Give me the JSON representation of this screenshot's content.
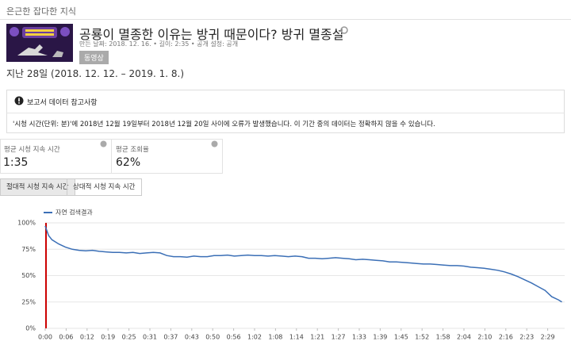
{
  "breadcrumb": "은근한 잡다한 지식",
  "video": {
    "title": "공룡이 멸종한 이유는 방귀 때문이다? 방귀 멸종설",
    "meta": "만든 날짜: 2018. 12. 16. • 길이: 2:35 • 공개 설정: 공개",
    "badge": "동영상"
  },
  "period": "지난 28일 (2018. 12. 12. – 2019. 1. 8.)",
  "notice": {
    "title": "보고서 데이터 참고사항",
    "text": "'시청 시간(단위: 분)'에 2018년 12월 19일부터 2018년 12월 20일 사이에 오류가 발생했습니다. 이 기간 중의 데이터는 정확하지 않을 수 있습니다."
  },
  "metrics": [
    {
      "label": "평균 시청 지속 시간",
      "value": "1:35"
    },
    {
      "label": "평균 조회율",
      "value": "62%"
    }
  ],
  "tabs": [
    "절대적 시청 지속 시간",
    "상대적 시청 지속 시간"
  ],
  "chart_data": {
    "type": "line",
    "x": [
      0,
      1,
      2,
      4,
      6,
      8,
      10,
      12,
      14,
      16,
      18,
      20,
      22,
      24,
      26,
      28,
      30,
      32,
      34,
      36,
      38,
      40,
      42,
      44,
      46,
      48,
      50,
      52,
      54,
      56,
      58,
      60,
      62,
      64,
      66,
      68,
      70,
      72,
      74,
      76,
      78,
      80,
      82,
      84,
      86,
      88,
      90,
      92,
      94,
      96,
      98,
      100,
      102,
      104,
      106,
      108,
      110,
      112,
      114,
      116,
      118,
      120,
      122,
      124,
      126,
      128,
      130,
      132,
      134,
      136,
      138,
      140,
      142,
      144,
      146,
      148,
      150,
      152,
      153
    ],
    "series": [
      {
        "name": "자연 검색결과",
        "color": "#3b6fb6",
        "values": [
          97,
          88,
          84,
          80,
          77,
          75,
          74,
          73.5,
          74,
          73,
          72.5,
          72,
          72,
          71.5,
          72,
          71,
          71.5,
          72,
          71.5,
          69,
          68,
          68,
          67.5,
          68.5,
          68,
          68,
          69,
          69,
          69.5,
          68.5,
          69,
          69.5,
          69,
          69,
          68.5,
          69,
          68.5,
          68,
          68.5,
          68,
          66.5,
          66.5,
          66,
          66.5,
          67,
          66.5,
          66,
          65,
          65.5,
          65,
          64.5,
          64,
          63,
          63,
          62.5,
          62,
          61.5,
          61,
          61,
          60.5,
          60,
          59.5,
          59.5,
          59,
          58,
          57.5,
          57,
          56,
          55,
          53.5,
          51.5,
          49,
          46,
          43,
          39.5,
          36,
          30,
          27,
          25
        ]
      }
    ],
    "xlim": [
      0,
      155
    ],
    "ylim": [
      0,
      100
    ],
    "xticks": [
      {
        "value": 0,
        "label": "0:00"
      },
      {
        "value": 6.2,
        "label": "0:06"
      },
      {
        "value": 12.4,
        "label": "0:12"
      },
      {
        "value": 18.6,
        "label": "0:19"
      },
      {
        "value": 24.8,
        "label": "0:25"
      },
      {
        "value": 31,
        "label": "0:31"
      },
      {
        "value": 37.2,
        "label": "0:37"
      },
      {
        "value": 43.4,
        "label": "0:43"
      },
      {
        "value": 49.6,
        "label": "0:50"
      },
      {
        "value": 55.8,
        "label": "0:56"
      },
      {
        "value": 62,
        "label": "1:02"
      },
      {
        "value": 68.2,
        "label": "1:08"
      },
      {
        "value": 74.4,
        "label": "1:14"
      },
      {
        "value": 80.6,
        "label": "1:21"
      },
      {
        "value": 86.8,
        "label": "1:27"
      },
      {
        "value": 93,
        "label": "1:33"
      },
      {
        "value": 99.2,
        "label": "1:39"
      },
      {
        "value": 105.4,
        "label": "1:45"
      },
      {
        "value": 111.6,
        "label": "1:52"
      },
      {
        "value": 117.8,
        "label": "1:58"
      },
      {
        "value": 124,
        "label": "2:04"
      },
      {
        "value": 130.2,
        "label": "2:10"
      },
      {
        "value": 136.4,
        "label": "2:16"
      },
      {
        "value": 142.6,
        "label": "2:23"
      },
      {
        "value": 148.8,
        "label": "2:29"
      }
    ],
    "yticks": [
      {
        "value": 0,
        "label": "0%"
      },
      {
        "value": 25,
        "label": "25%"
      },
      {
        "value": 50,
        "label": "50%"
      },
      {
        "value": 75,
        "label": "75%"
      },
      {
        "value": 100,
        "label": "100%"
      }
    ],
    "grid": true
  }
}
